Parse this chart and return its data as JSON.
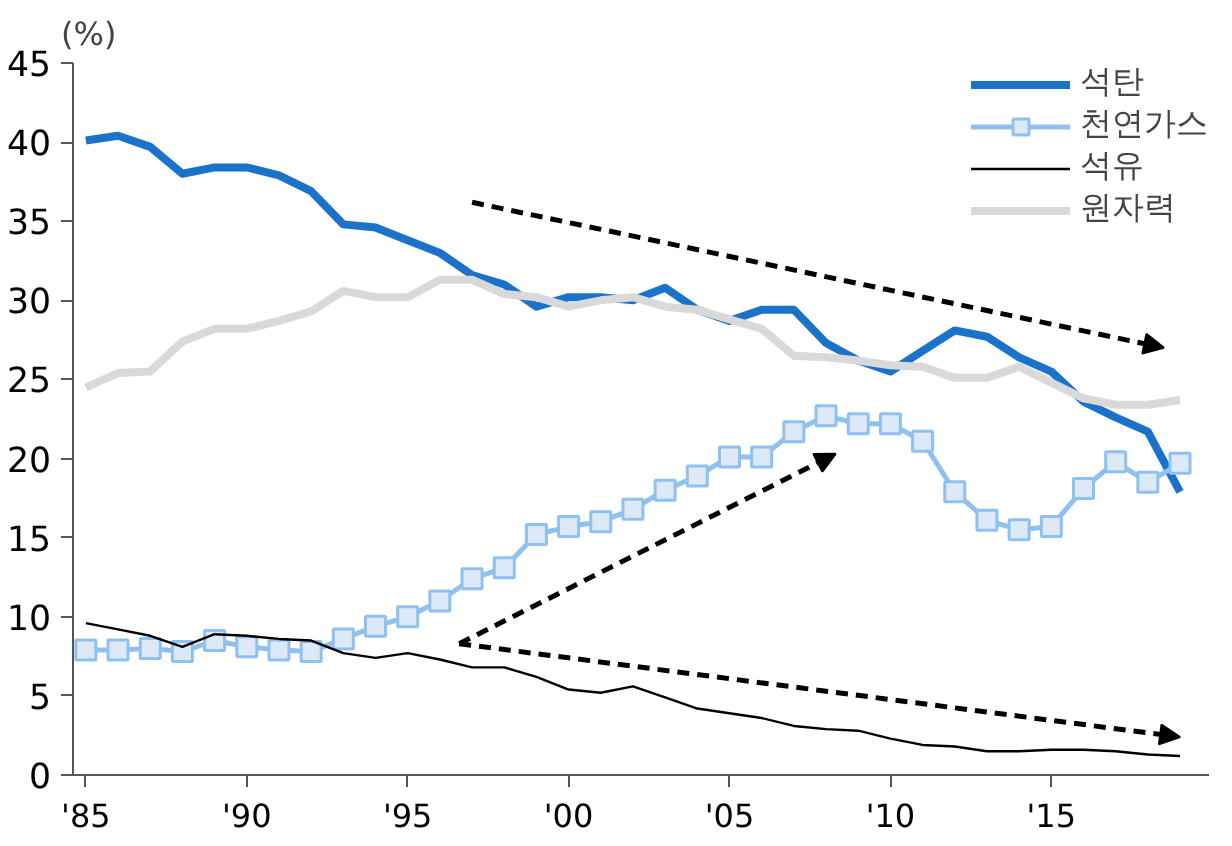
{
  "chart_data": {
    "type": "line",
    "ylabel": "(%)",
    "x": [
      1985,
      1986,
      1987,
      1988,
      1989,
      1990,
      1991,
      1992,
      1993,
      1994,
      1995,
      1996,
      1997,
      1998,
      1999,
      2000,
      2001,
      2002,
      2003,
      2004,
      2005,
      2006,
      2007,
      2008,
      2009,
      2010,
      2011,
      2012,
      2013,
      2014,
      2015,
      2016,
      2017,
      2018,
      2019
    ],
    "xlim": [
      1984.6,
      2019.9
    ],
    "xticks": [
      {
        "value": 1985,
        "label": "'85"
      },
      {
        "value": 1990,
        "label": "'90"
      },
      {
        "value": 1995,
        "label": "'95"
      },
      {
        "value": 2000,
        "label": "'00"
      },
      {
        "value": 2005,
        "label": "'05"
      },
      {
        "value": 2010,
        "label": "'10"
      },
      {
        "value": 2015,
        "label": "'15"
      }
    ],
    "ylim": [
      0,
      45
    ],
    "yticks": [
      0,
      5,
      10,
      15,
      20,
      25,
      30,
      35,
      40,
      45
    ],
    "grid": false,
    "legend": "top right",
    "series": [
      {
        "name": "석탄",
        "color": "#1a73c9",
        "marker": "none",
        "values": [
          40.1,
          40.4,
          39.7,
          38.0,
          38.4,
          38.4,
          37.9,
          36.9,
          34.8,
          34.6,
          33.8,
          33.0,
          31.6,
          31.0,
          29.6,
          30.2,
          30.2,
          30.0,
          30.8,
          29.4,
          28.7,
          29.4,
          29.4,
          27.3,
          26.2,
          25.5,
          26.8,
          28.1,
          27.7,
          26.4,
          25.5,
          23.6,
          22.6,
          21.7,
          17.9
        ]
      },
      {
        "name": "천연가스",
        "color": "#8fc1f0",
        "marker": "square",
        "values": [
          7.9,
          7.9,
          8.0,
          7.8,
          8.5,
          8.1,
          7.9,
          7.8,
          8.6,
          9.4,
          10.0,
          11.0,
          12.4,
          13.1,
          15.2,
          15.7,
          16.0,
          16.8,
          18.0,
          18.9,
          20.1,
          20.1,
          21.7,
          22.7,
          22.2,
          22.2,
          21.1,
          17.9,
          16.1,
          15.5,
          15.7,
          18.1,
          19.8,
          18.5,
          19.7
        ]
      },
      {
        "name": "석유",
        "color": "#000000",
        "marker": "none",
        "values": [
          9.6,
          9.2,
          8.8,
          8.1,
          8.9,
          8.8,
          8.6,
          8.5,
          7.7,
          7.4,
          7.7,
          7.3,
          6.8,
          6.8,
          6.2,
          5.4,
          5.2,
          5.6,
          4.9,
          4.2,
          3.9,
          3.6,
          3.1,
          2.9,
          2.8,
          2.3,
          1.9,
          1.8,
          1.5,
          1.5,
          1.6,
          1.6,
          1.5,
          1.3,
          1.2
        ]
      },
      {
        "name": "원자력",
        "color": "#d9d9d9",
        "marker": "none",
        "values": [
          24.5,
          25.4,
          25.5,
          27.4,
          28.2,
          28.2,
          28.7,
          29.3,
          30.6,
          30.2,
          30.2,
          31.3,
          31.3,
          30.4,
          30.2,
          29.6,
          30.0,
          30.2,
          29.6,
          29.4,
          28.8,
          28.2,
          26.5,
          26.4,
          26.2,
          25.9,
          25.8,
          25.1,
          25.1,
          25.8,
          24.8,
          23.8,
          23.4,
          23.4,
          23.7
        ]
      }
    ]
  }
}
